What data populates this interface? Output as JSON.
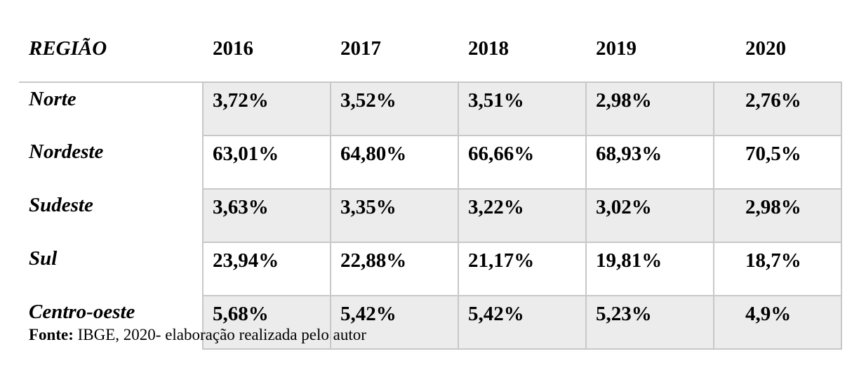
{
  "table": {
    "header": {
      "region": "REGIÃO",
      "years": [
        "2016",
        "2017",
        "2018",
        "2019",
        "2020"
      ]
    },
    "rows": [
      {
        "region": "Norte",
        "values": [
          "3,72%",
          "3,52%",
          "3,51%",
          "2,98%",
          "2,76%"
        ]
      },
      {
        "region": "Nordeste",
        "values": [
          "63,01%",
          "64,80%",
          "66,66%",
          "68,93%",
          "70,5%"
        ]
      },
      {
        "region": "Sudeste",
        "values": [
          "3,63%",
          "3,35%",
          "3,22%",
          "3,02%",
          "2,98%"
        ]
      },
      {
        "region": "Sul",
        "values": [
          "23,94%",
          "22,88%",
          "21,17%",
          "19,81%",
          "18,7%"
        ]
      },
      {
        "region": "Centro-oeste",
        "values": [
          "5,68%",
          "5,42%",
          "5,42%",
          "5,23%",
          "4,9%"
        ]
      }
    ]
  },
  "source": {
    "label": "Fonte:",
    "text": " IBGE, 2020- elaboração realizada pelo autor"
  }
}
